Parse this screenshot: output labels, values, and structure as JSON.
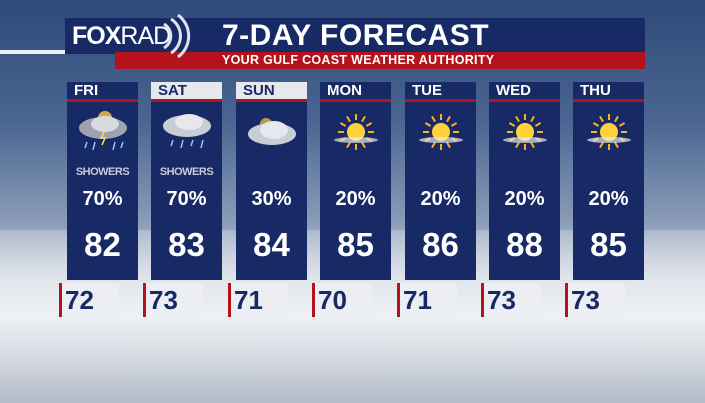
{
  "header": {
    "logo": {
      "fox": "FOX",
      "rad": "RAD"
    },
    "title": "7-DAY FORECAST",
    "subtitle": "YOUR GULF COAST WEATHER AUTHORITY"
  },
  "colors": {
    "navy": "#172a66",
    "red": "#b5121b"
  },
  "days": [
    {
      "day": "FRI",
      "icon": "thunderstorm-sun-icon",
      "condition": "SHOWERS",
      "pop": "70%",
      "high": "82",
      "low": "72",
      "header_style": "dark"
    },
    {
      "day": "SAT",
      "icon": "rain-cloud-icon",
      "condition": "SHOWERS",
      "pop": "70%",
      "high": "83",
      "low": "73",
      "header_style": "light"
    },
    {
      "day": "SUN",
      "icon": "cloud-icon",
      "condition": "",
      "pop": "30%",
      "high": "84",
      "low": "71",
      "header_style": "light"
    },
    {
      "day": "MON",
      "icon": "sun-icon",
      "condition": "",
      "pop": "20%",
      "high": "85",
      "low": "70",
      "header_style": "dark"
    },
    {
      "day": "TUE",
      "icon": "sun-icon",
      "condition": "",
      "pop": "20%",
      "high": "86",
      "low": "71",
      "header_style": "dark"
    },
    {
      "day": "WED",
      "icon": "sun-icon",
      "condition": "",
      "pop": "20%",
      "high": "88",
      "low": "73",
      "header_style": "dark"
    },
    {
      "day": "THU",
      "icon": "sun-icon",
      "condition": "",
      "pop": "20%",
      "high": "85",
      "low": "73",
      "header_style": "dark"
    }
  ]
}
